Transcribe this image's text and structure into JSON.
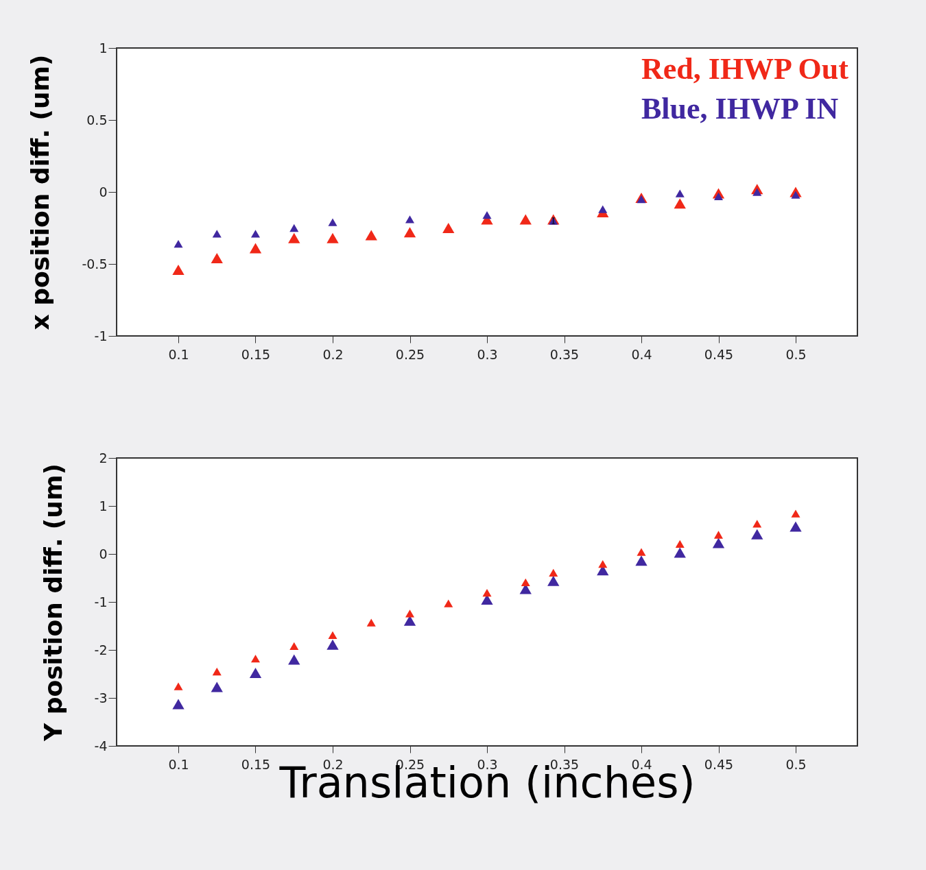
{
  "chart_data": [
    {
      "type": "scatter",
      "ylabel": "x position diff. (um)",
      "x": [
        0.1,
        0.125,
        0.15,
        0.175,
        0.2,
        0.225,
        0.25,
        0.275,
        0.3,
        0.325,
        0.343,
        0.375,
        0.4,
        0.425,
        0.45,
        0.475,
        0.5
      ],
      "xlim": [
        0.06,
        0.54
      ],
      "xticks": [
        0.1,
        0.15,
        0.2,
        0.25,
        0.3,
        0.35,
        0.4,
        0.45,
        0.5
      ],
      "ylim": [
        -1,
        1
      ],
      "yticks": [
        -1,
        -0.5,
        0,
        0.5,
        1
      ],
      "marker": "triangle",
      "legend": "top right",
      "series": [
        {
          "name": "Red, IHWP Out",
          "color": "#f02818",
          "values": [
            -0.54,
            -0.46,
            -0.39,
            -0.32,
            -0.32,
            -0.3,
            -0.28,
            -0.25,
            -0.19,
            -0.19,
            -0.19,
            -0.14,
            -0.04,
            -0.08,
            -0.01,
            0.02,
            0.0
          ]
        },
        {
          "name": "Blue, IHWP IN",
          "color": "#4028a0",
          "values": [
            -0.36,
            -0.29,
            -0.29,
            -0.25,
            -0.21,
            null,
            -0.19,
            null,
            -0.16,
            null,
            -0.2,
            -0.12,
            -0.05,
            -0.01,
            -0.03,
            0.0,
            -0.02
          ],
          "errors": [
            null,
            null,
            null,
            null,
            null,
            null,
            null,
            null,
            null,
            null,
            0.02,
            null,
            null,
            null,
            null,
            null,
            null
          ]
        }
      ]
    },
    {
      "type": "scatter",
      "ylabel": "Y position diff. (um)",
      "xlabel": "Translation (inches)",
      "x": [
        0.1,
        0.125,
        0.15,
        0.175,
        0.2,
        0.225,
        0.25,
        0.275,
        0.3,
        0.325,
        0.343,
        0.375,
        0.4,
        0.425,
        0.45,
        0.475,
        0.5
      ],
      "xlim": [
        0.06,
        0.54
      ],
      "xticks": [
        0.1,
        0.15,
        0.2,
        0.25,
        0.3,
        0.35,
        0.4,
        0.45,
        0.5
      ],
      "ylim": [
        -4,
        2
      ],
      "yticks": [
        -4,
        -3,
        -2,
        -1,
        0,
        1,
        2
      ],
      "marker": "triangle",
      "series": [
        {
          "color": "#4028a0",
          "values": [
            -3.13,
            -2.77,
            -2.48,
            -2.2,
            -1.89,
            null,
            -1.39,
            null,
            -0.95,
            -0.73,
            -0.56,
            -0.34,
            -0.14,
            0.03,
            0.23,
            0.41,
            0.57
          ]
        },
        {
          "color": "#f02818",
          "values": [
            -2.76,
            -2.45,
            -2.18,
            -1.92,
            -1.69,
            -1.43,
            -1.24,
            -1.03,
            -0.81,
            -0.59,
            -0.39,
            -0.21,
            0.04,
            0.21,
            0.4,
            0.63,
            0.84
          ]
        }
      ]
    }
  ]
}
